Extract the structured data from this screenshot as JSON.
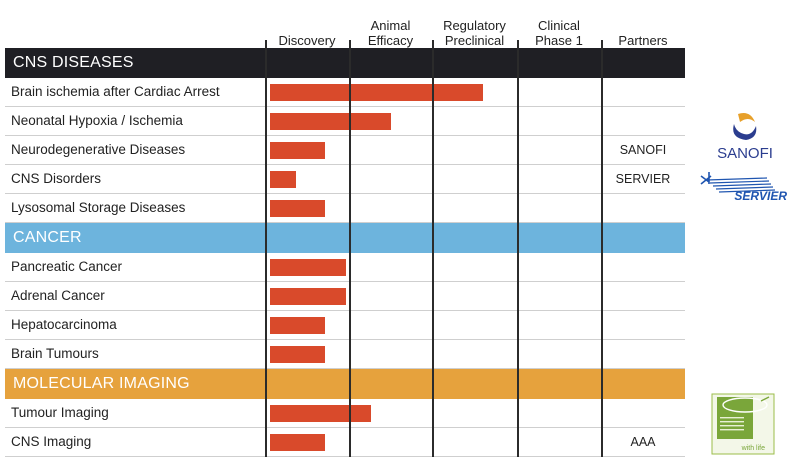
{
  "columns": [
    {
      "label": "Discovery"
    },
    {
      "label": "Animal\nEfficacy"
    },
    {
      "label": "Regulatory\nPreclinical"
    },
    {
      "label": "Clinical\nPhase 1"
    },
    {
      "label": "Partners"
    }
  ],
  "bar_color": "#d94a2b",
  "sections": [
    {
      "title": "CNS DISEASES",
      "color": "#1f1f24",
      "text_color": "#ffffff",
      "rows": [
        {
          "label": "Brain ischemia after Cardiac Arrest",
          "stage_progress": 2.6,
          "partner": ""
        },
        {
          "label": "Neonatal Hypoxia / Ischemia",
          "stage_progress": 1.5,
          "partner": ""
        },
        {
          "label": "Neurodegenerative Diseases",
          "stage_progress": 0.72,
          "partner": "SANOFI"
        },
        {
          "label": "CNS Disorders",
          "stage_progress": 0.37,
          "partner": "SERVIER"
        },
        {
          "label": "Lysosomal Storage Diseases",
          "stage_progress": 0.72,
          "partner": ""
        }
      ]
    },
    {
      "title": "CANCER",
      "color": "#6db4dd",
      "text_color": "#ffffff",
      "rows": [
        {
          "label": "Pancreatic Cancer",
          "stage_progress": 0.96,
          "partner": ""
        },
        {
          "label": "Adrenal Cancer",
          "stage_progress": 0.96,
          "partner": ""
        },
        {
          "label": "Hepatocarcinoma",
          "stage_progress": 0.72,
          "partner": ""
        },
        {
          "label": "Brain Tumours",
          "stage_progress": 0.72,
          "partner": ""
        }
      ]
    },
    {
      "title": "MOLECULAR IMAGING",
      "color": "#e6a23d",
      "text_color": "#ffffff",
      "rows": [
        {
          "label": "Tumour Imaging",
          "stage_progress": 1.27,
          "partner": ""
        },
        {
          "label": "CNS Imaging",
          "stage_progress": 0.72,
          "partner": "AAA"
        }
      ]
    }
  ],
  "logos": {
    "sanofi": {
      "text": "SANOFI",
      "icon": "sanofi-logo-icon"
    },
    "servier": {
      "text": "SERVIER",
      "icon": "servier-logo-icon"
    },
    "aaa": {
      "icon": "aaa-logo-icon",
      "tagline": "with life"
    }
  }
}
